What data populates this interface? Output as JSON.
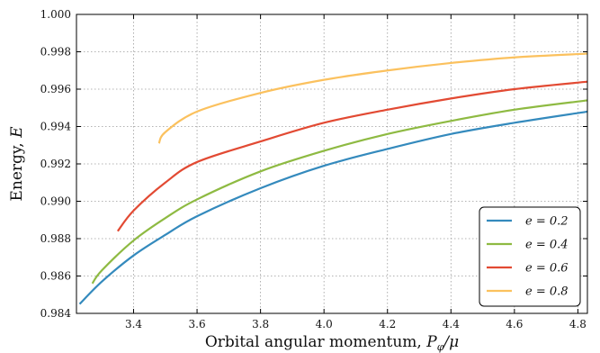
{
  "chart_data": {
    "type": "line",
    "xlabel": "Orbital angular momentum, P_φ/μ",
    "xlabel_text": "Orbital angular momentum, ",
    "xlabel_math": "P",
    "xlabel_sub": "φ",
    "xlabel_tail": "/μ",
    "ylabel": "Energy, E",
    "ylabel_text": "Energy, ",
    "ylabel_math": "E",
    "xlim": [
      3.22,
      4.83
    ],
    "ylim": [
      0.984,
      1.0
    ],
    "xticks": [
      3.4,
      3.6,
      3.8,
      4.0,
      4.2,
      4.4,
      4.6,
      4.8
    ],
    "yticks": [
      0.984,
      0.986,
      0.988,
      0.99,
      0.992,
      0.994,
      0.996,
      0.998,
      1.0
    ],
    "xtick_labels": [
      "3.4",
      "3.6",
      "3.8",
      "4.0",
      "4.2",
      "4.4",
      "4.6",
      "4.8"
    ],
    "ytick_labels": [
      "0.984",
      "0.986",
      "0.988",
      "0.990",
      "0.992",
      "0.994",
      "0.996",
      "0.998",
      "1.000"
    ],
    "grid": true,
    "legend_position": "bottom-right",
    "series": [
      {
        "name": "e = 0.2",
        "color": "#348ABD",
        "x": [
          3.23,
          3.3,
          3.4,
          3.5,
          3.6,
          3.8,
          4.0,
          4.2,
          4.4,
          4.6,
          4.83
        ],
        "y": [
          0.9845,
          0.9857,
          0.9871,
          0.9882,
          0.9892,
          0.9907,
          0.9919,
          0.9928,
          0.9936,
          0.9942,
          0.9948
        ]
      },
      {
        "name": "e = 0.4",
        "color": "#8EBA42",
        "x": [
          3.27,
          3.3,
          3.4,
          3.5,
          3.6,
          3.8,
          4.0,
          4.2,
          4.4,
          4.6,
          4.83
        ],
        "y": [
          0.9856,
          0.9863,
          0.9879,
          0.9891,
          0.9901,
          0.9916,
          0.9927,
          0.9936,
          0.9943,
          0.9949,
          0.9954
        ]
      },
      {
        "name": "e = 0.6",
        "color": "#E24A33",
        "x": [
          3.35,
          3.4,
          3.5,
          3.6,
          3.8,
          4.0,
          4.2,
          4.4,
          4.6,
          4.83
        ],
        "y": [
          0.9884,
          0.9895,
          0.991,
          0.9921,
          0.9932,
          0.9942,
          0.9949,
          0.9955,
          0.996,
          0.9964
        ]
      },
      {
        "name": "e = 0.8",
        "color": "#FBC15E",
        "x": [
          3.48,
          3.5,
          3.6,
          3.8,
          4.0,
          4.2,
          4.4,
          4.6,
          4.83
        ],
        "y": [
          0.9931,
          0.9937,
          0.9948,
          0.9958,
          0.9965,
          0.997,
          0.9974,
          0.9977,
          0.9979
        ]
      }
    ]
  }
}
